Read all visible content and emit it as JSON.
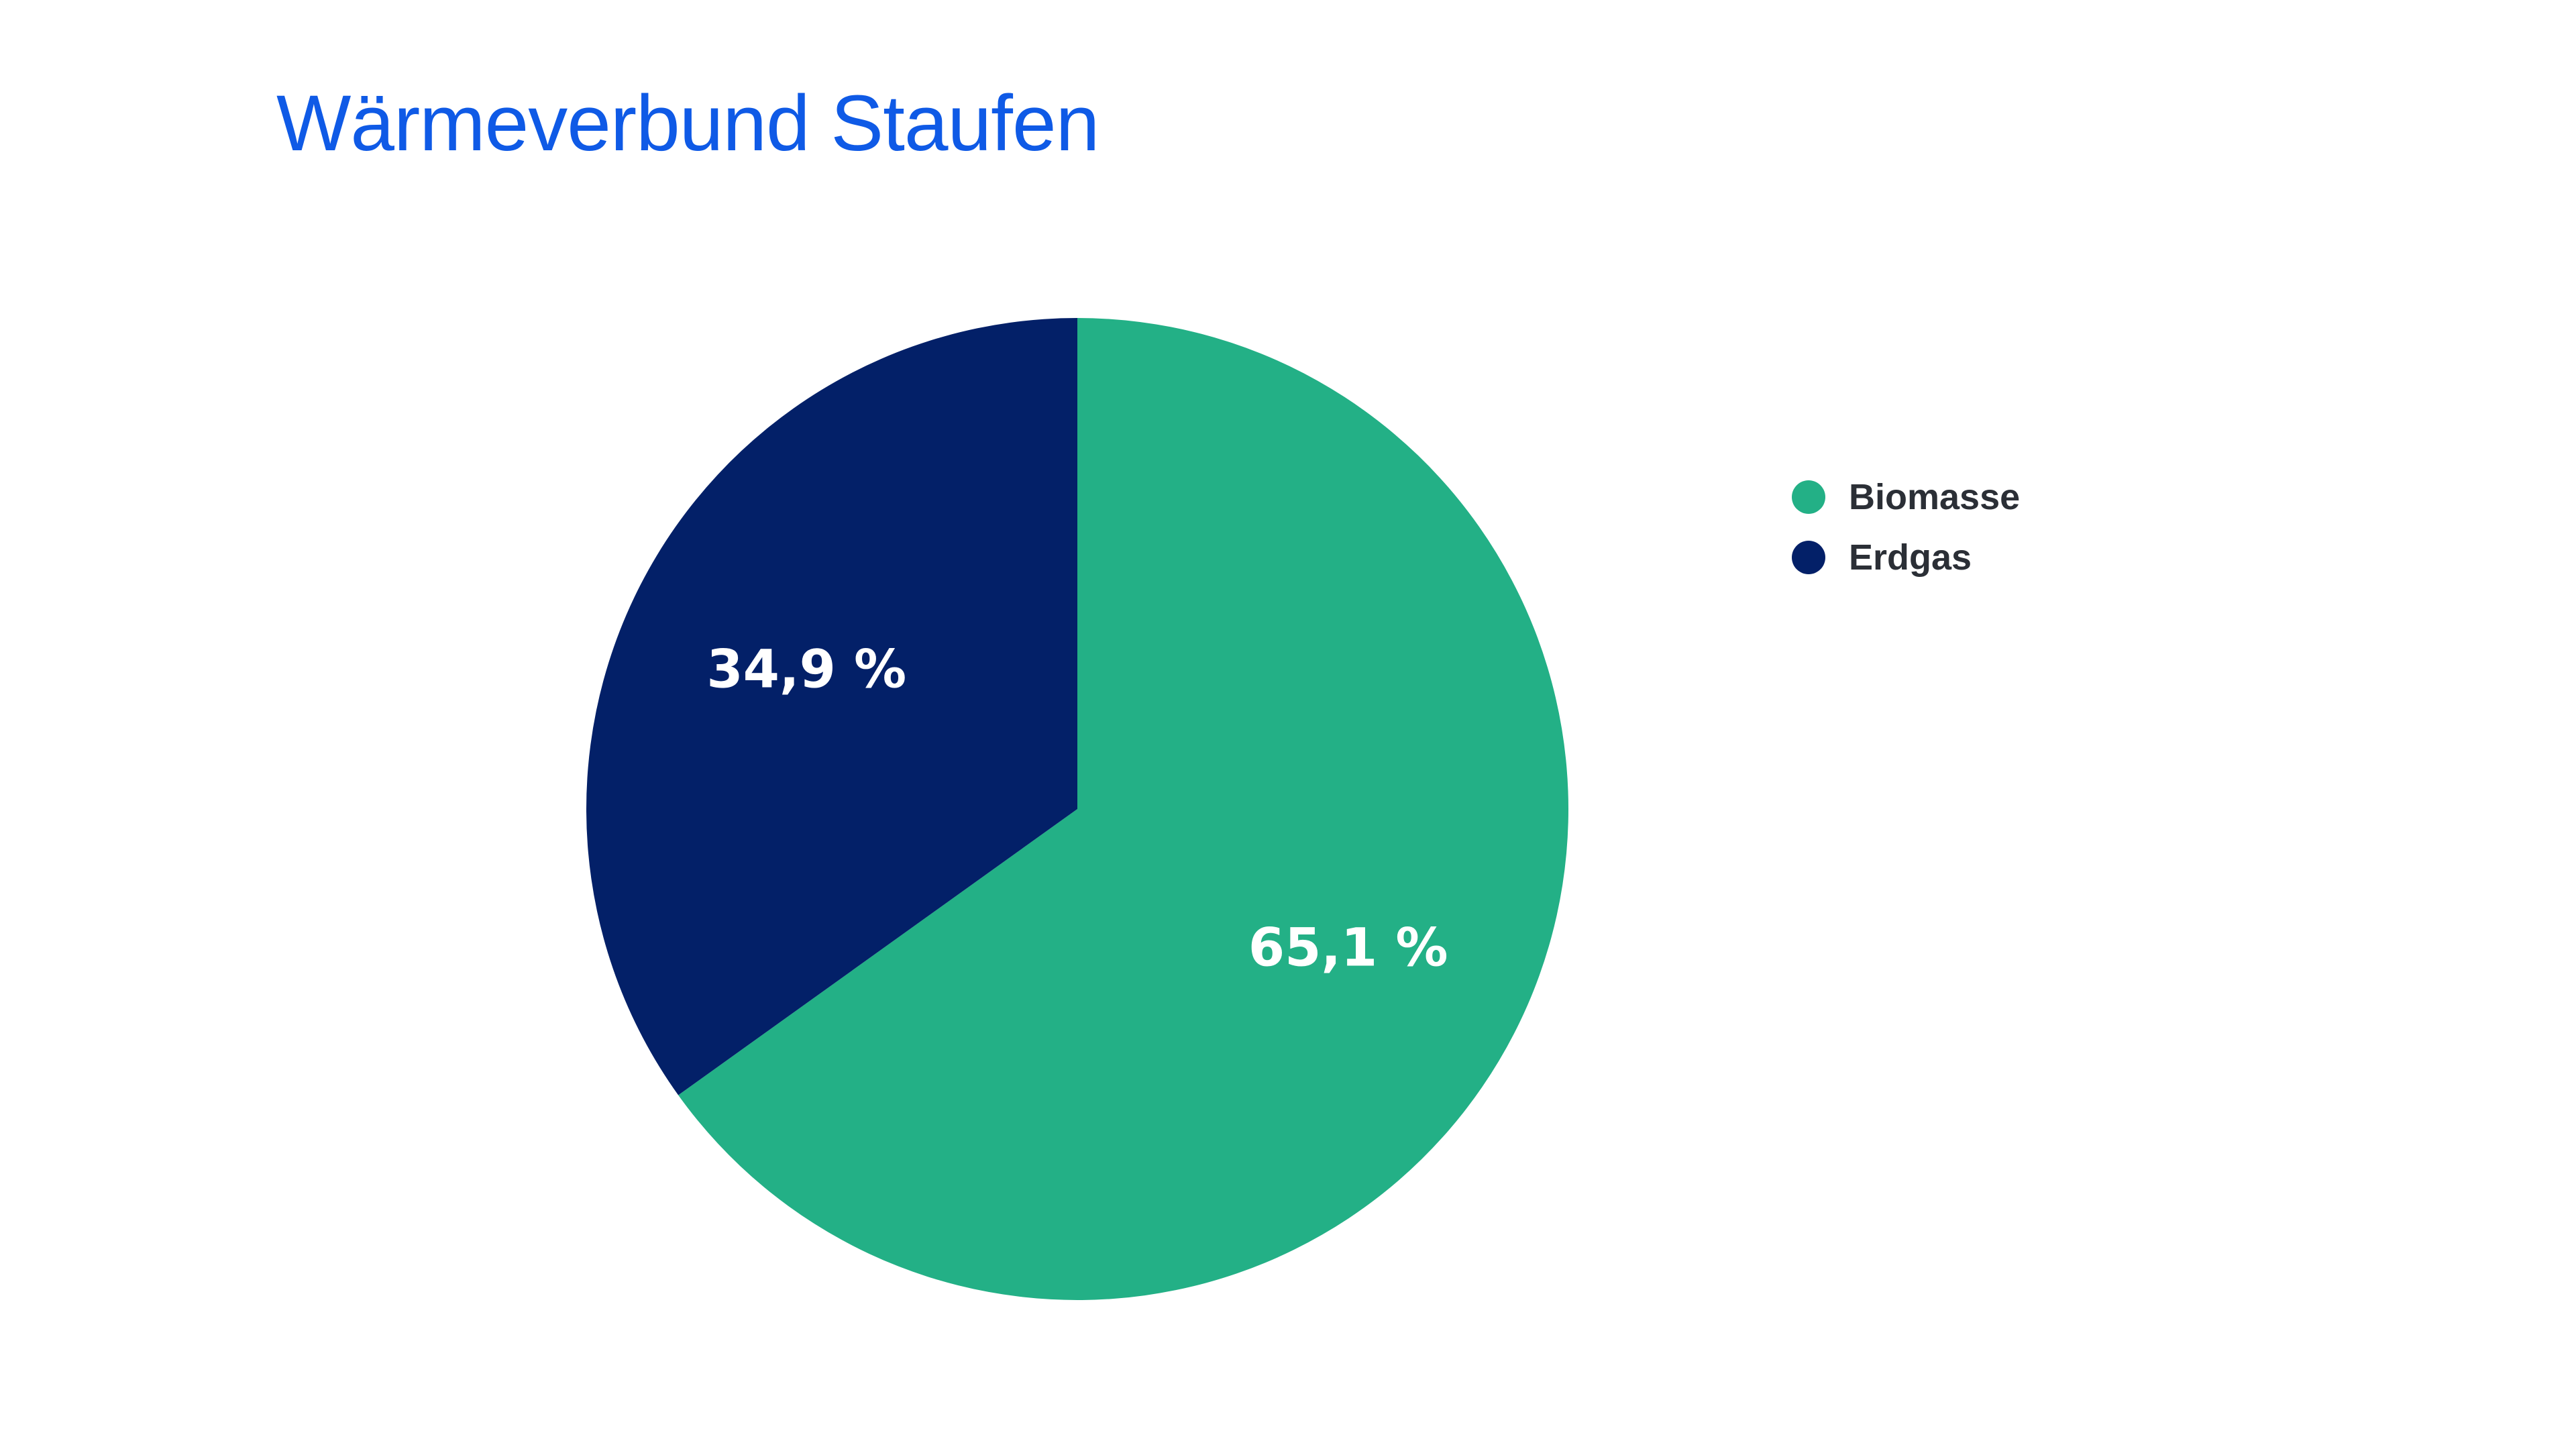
{
  "chart_data": {
    "type": "pie",
    "title": "Wärmeverbund Staufen",
    "series": [
      {
        "name": "Biomasse",
        "value": 65.1,
        "label": "65,1 %",
        "color": "#23b086"
      },
      {
        "name": "Erdgas",
        "value": 34.9,
        "label": "34,9 %",
        "color": "#032068"
      }
    ],
    "legend_position": "right"
  },
  "colors": {
    "title": "#0f5ae6",
    "legend_text": "#2b2f36",
    "slice_label": "#ffffff",
    "background": "#ffffff"
  }
}
